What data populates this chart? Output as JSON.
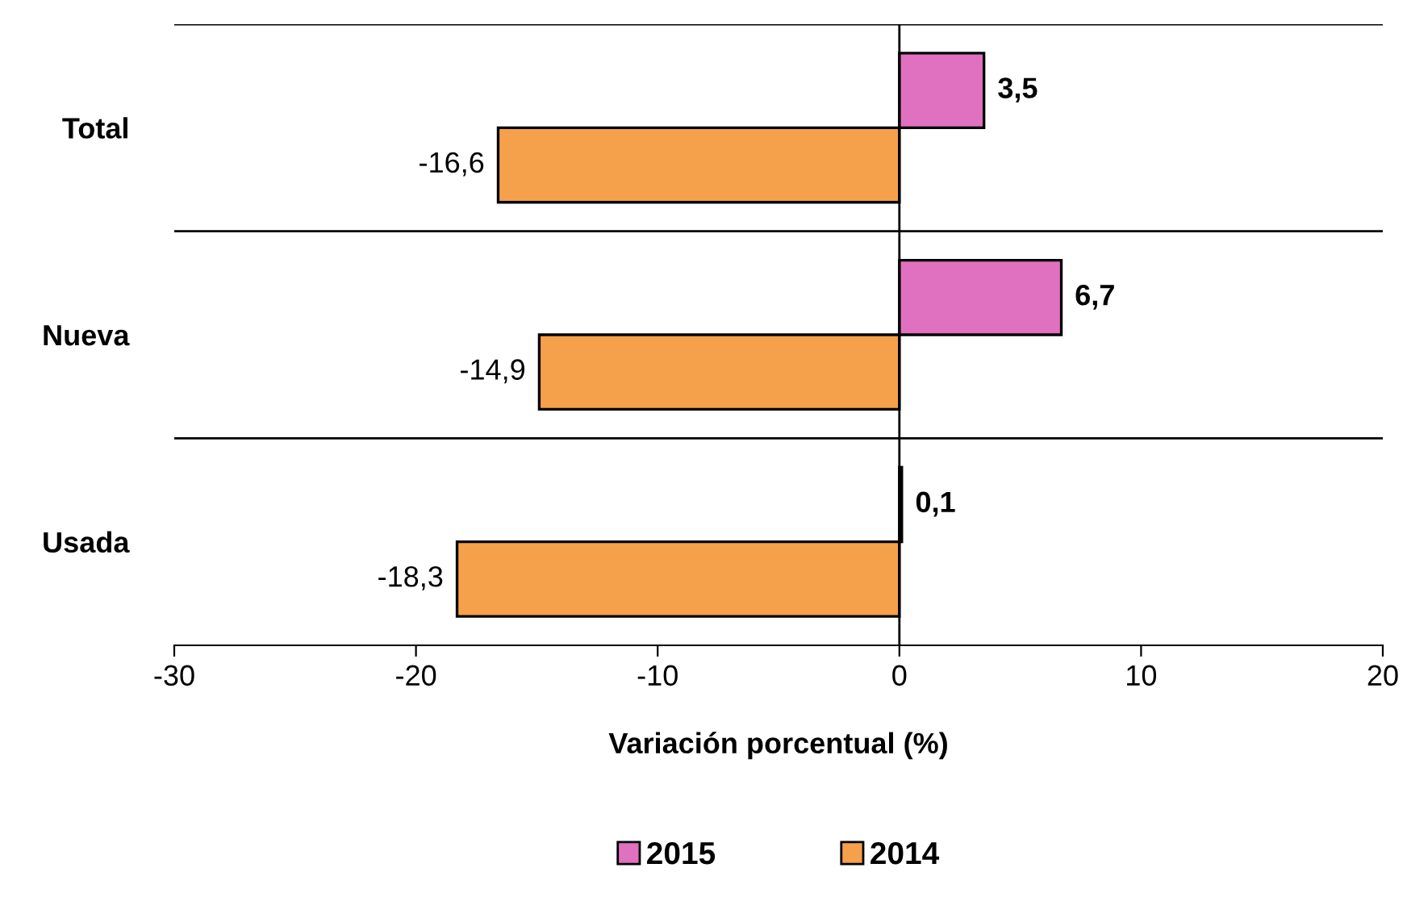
{
  "chart_data": {
    "type": "bar",
    "orientation": "horizontal",
    "xlabel": "Variación porcentual (%)",
    "categories": [
      "Total",
      "Nueva",
      "Usada"
    ],
    "series": [
      {
        "name": "2015",
        "color": "#e070c0",
        "values": [
          3.5,
          6.7,
          0.1
        ],
        "value_labels": [
          "3,5",
          "6,7",
          "0,1"
        ]
      },
      {
        "name": "2014",
        "color": "#f5a04a",
        "values": [
          -16.6,
          -14.9,
          -18.3
        ],
        "value_labels": [
          "-16,6",
          "-14,9",
          "-18,3"
        ]
      }
    ],
    "xlim": [
      -30,
      20
    ],
    "xticks": [
      -30,
      -20,
      -10,
      0,
      10,
      20
    ],
    "legend": "bottom"
  }
}
